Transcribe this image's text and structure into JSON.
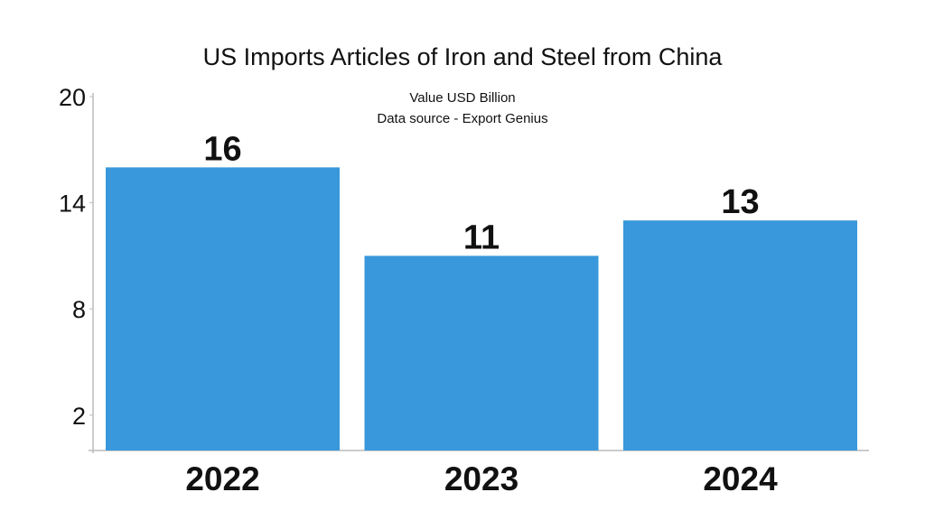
{
  "chart_data": {
    "type": "bar",
    "title": "US Imports Articles of Iron and Steel from China",
    "subtitle": [
      "Value USD Billion",
      "Data source - Export Genius"
    ],
    "categories": [
      "2022",
      "2023",
      "2024"
    ],
    "values": [
      16,
      11,
      13
    ],
    "data_labels": [
      "16",
      "11",
      "13"
    ],
    "yticks": [
      2,
      8,
      14,
      20
    ],
    "ylim": [
      0,
      20
    ],
    "xlabel": "",
    "ylabel": "",
    "grid": false,
    "bar_color": "#3898db"
  }
}
